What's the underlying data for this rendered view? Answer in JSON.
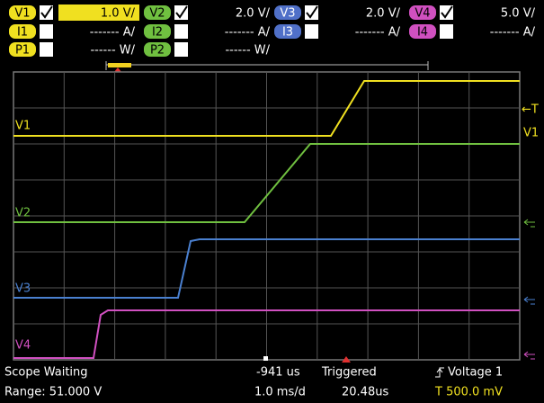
{
  "header": {
    "voltage": [
      {
        "label": "V1",
        "scale": "1.0 V/"
      },
      {
        "label": "V2",
        "scale": "2.0 V/"
      },
      {
        "label": "V3",
        "scale": "2.0 V/"
      },
      {
        "label": "V4",
        "scale": "5.0 V/"
      }
    ],
    "current": [
      {
        "label": "I1",
        "scale": "------- A/"
      },
      {
        "label": "I2",
        "scale": "------- A/"
      },
      {
        "label": "I3",
        "scale": "------- A/"
      },
      {
        "label": "I4",
        "scale": "------- A/"
      }
    ],
    "power": [
      {
        "label": "P1",
        "scale": "------ W/"
      },
      {
        "label": "P2",
        "scale": "------ W/"
      }
    ]
  },
  "traces": [
    {
      "label": "V1"
    },
    {
      "label": "V2"
    },
    {
      "label": "V3"
    },
    {
      "label": "V4"
    }
  ],
  "markers": {
    "trigger": "←T",
    "reference": "V1"
  },
  "status": {
    "state": "Scope Waiting",
    "range": "Range: 51.000 V",
    "offset": "-941 us",
    "timebase": "1.0 ms/d",
    "trigger_state": "Triggered",
    "trigger_time": "20.48us",
    "trigger_source": "Voltage 1",
    "trigger_level": "T  500.0 mV"
  }
}
